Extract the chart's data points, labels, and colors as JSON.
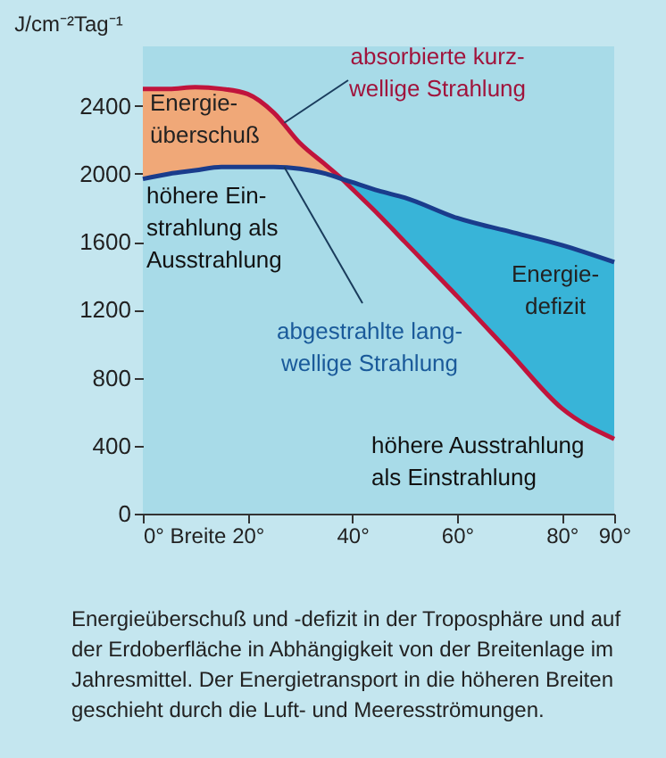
{
  "chart_data": {
    "type": "line",
    "ylabel": "J/cm⁻²Tag⁻¹",
    "x": [
      0,
      5,
      10,
      15,
      20,
      25,
      30,
      35,
      38,
      40,
      45,
      50,
      60,
      70,
      80,
      90
    ],
    "series": [
      {
        "color": "#c0143c",
        "values": [
          2500,
          2500,
          2510,
          2500,
          2470,
          2360,
          2180,
          2050,
          1970,
          1910,
          1760,
          1600,
          1280,
          950,
          620,
          440
        ],
        "lower": [
          1970,
          2000,
          2020,
          2040,
          2040,
          2040,
          2030,
          2000,
          1970,
          null,
          null,
          null,
          null,
          null,
          null,
          null
        ],
        "upper": [
          2500,
          2500,
          2510,
          2500,
          2470,
          2360,
          2180,
          2050,
          1970,
          null,
          null,
          null,
          null,
          null,
          null,
          null
        ]
      },
      {
        "color": "#1a3c8c",
        "values": [
          1970,
          2000,
          2020,
          2040,
          2040,
          2040,
          2030,
          2000,
          1970,
          1950,
          1900,
          1860,
          1740,
          1660,
          1580,
          1480
        ],
        "lower": [
          null,
          null,
          null,
          null,
          null,
          null,
          null,
          null,
          1970,
          1910,
          1760,
          1600,
          1280,
          950,
          620,
          440
        ],
        "upper": [
          null,
          null,
          null,
          null,
          null,
          null,
          null,
          null,
          1970,
          1950,
          1900,
          1860,
          1740,
          1660,
          1580,
          1480
        ]
      }
    ],
    "xlim": [
      0,
      90
    ],
    "xticks": [
      {
        "value": 0,
        "label": "0° Breite"
      },
      {
        "value": 20,
        "label": "20°"
      },
      {
        "value": 40,
        "label": "40°"
      },
      {
        "value": 60,
        "label": "60°"
      },
      {
        "value": 80,
        "label": "80°"
      },
      {
        "value": 90,
        "label": "90°"
      }
    ],
    "ylim": [
      0,
      2750
    ],
    "yticks": [
      0,
      400,
      800,
      1200,
      1600,
      2000,
      2400
    ],
    "grid": false,
    "annotations": [
      {
        "text": "absorbierte kurz-\nwellige Strahlung",
        "x": 27,
        "y": 2300
      },
      "Energie-\nüberschuß",
      "höhere Ein-\nstrahlung als\nAusstrahlung",
      {
        "text": "abgestrahlte lang-\nwellige Strahlung",
        "x": 27,
        "y": 2040
      },
      "Energie-\ndefizit",
      "höhere Ausstrahlung\nals Einstrahlung",
      "Energieüberschuß und -defizit in der Troposphäre und auf\nder Erdoberfläche in Abhängigkeit von der Breitenlage im\nJahresmittel. Der Energietransport in die höheren Breiten\ngeschieht durch die Luft- und Meeresströmungen."
    ]
  }
}
